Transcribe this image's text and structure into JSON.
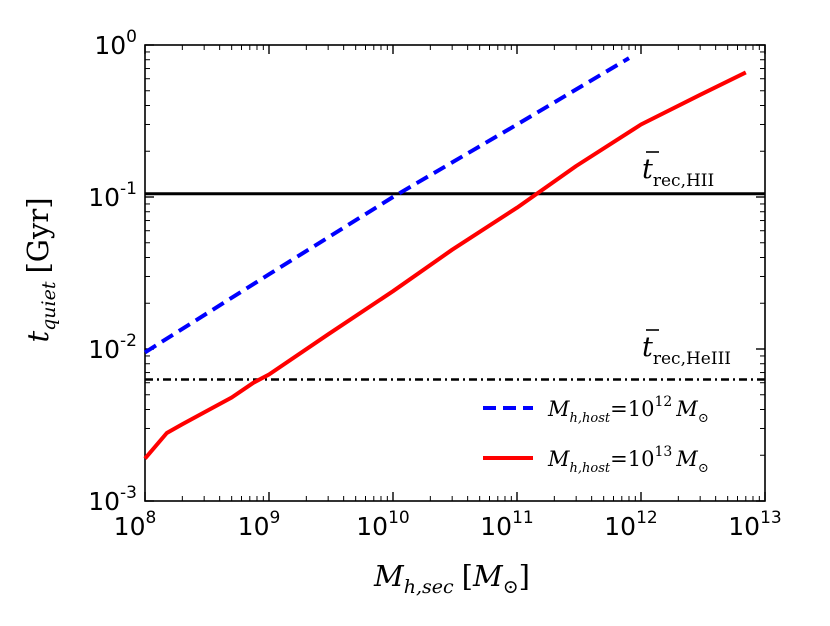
{
  "chart_data": {
    "type": "line",
    "scale": {
      "x": "log",
      "y": "log"
    },
    "xlim": [
      100000000,
      10000000000000
    ],
    "ylim": [
      0.001,
      1
    ],
    "xlabel": {
      "var": "M",
      "sub": "h,sec",
      "unit_open": "[",
      "unit_var": "M",
      "unit_sub": "⊙",
      "unit_close": "]"
    },
    "ylabel": {
      "var": "t",
      "sub": "quiet",
      "unit": "[Gyr]"
    },
    "xticks": [
      {
        "value": 100000000,
        "base": "10",
        "exp": "8"
      },
      {
        "value": 1000000000,
        "base": "10",
        "exp": "9"
      },
      {
        "value": 10000000000,
        "base": "10",
        "exp": "10"
      },
      {
        "value": 100000000000,
        "base": "10",
        "exp": "11"
      },
      {
        "value": 1000000000000,
        "base": "10",
        "exp": "12"
      },
      {
        "value": 10000000000000,
        "base": "10",
        "exp": "13"
      }
    ],
    "yticks": [
      {
        "value": 0.001,
        "base": "10",
        "exp": "-3"
      },
      {
        "value": 0.01,
        "base": "10",
        "exp": "-2"
      },
      {
        "value": 0.1,
        "base": "10",
        "exp": "-1"
      },
      {
        "value": 1,
        "base": "10",
        "exp": "0"
      }
    ],
    "series": [
      {
        "name": "host-1e12",
        "label_var": "M",
        "label_sub": "h,host",
        "label_eq": "=",
        "label_base": "10",
        "label_exp": "12",
        "label_unit_var": "M",
        "label_unit_sub": "⊙",
        "color": "#0000ff",
        "style": "dashed",
        "x": [
          100000000,
          1000000000,
          10000000000,
          100000000000,
          800000000000
        ],
        "y": [
          0.0095,
          0.031,
          0.1,
          0.3,
          0.82
        ]
      },
      {
        "name": "host-1e13",
        "label_var": "M",
        "label_sub": "h,host",
        "label_eq": "=",
        "label_base": "10",
        "label_exp": "13",
        "label_unit_var": "M",
        "label_unit_sub": "⊙",
        "color": "#ff0000",
        "style": "solid",
        "x": [
          100000000,
          150000000,
          200000000,
          350000000,
          500000000,
          750000000,
          1000000000,
          3000000000,
          10000000000,
          30000000000,
          100000000000,
          300000000000,
          1000000000000,
          3000000000000,
          7000000000000
        ],
        "y": [
          0.0019,
          0.0028,
          0.0032,
          0.0041,
          0.0048,
          0.006,
          0.0068,
          0.0125,
          0.024,
          0.045,
          0.085,
          0.16,
          0.3,
          0.47,
          0.66
        ]
      }
    ],
    "hlines": [
      {
        "name": "t-rec-HII",
        "y": 0.105,
        "color": "#000000",
        "style": "solid",
        "label_var": "t",
        "label_sub": "rec,HII"
      },
      {
        "name": "t-rec-HeIII",
        "y": 0.0063,
        "color": "#000000",
        "style": "dashdot",
        "label_var": "t",
        "label_sub": "rec,HeIII"
      }
    ],
    "legend": "lower-right"
  }
}
